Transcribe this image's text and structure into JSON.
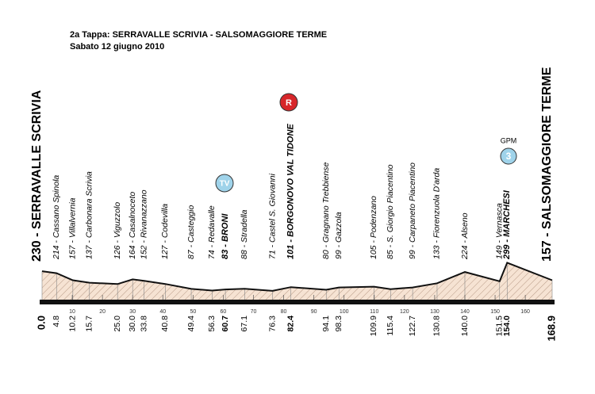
{
  "chart_data": {
    "type": "profile",
    "title": "2a Tappa: SERRAVALLE SCRIVIA - SALSOMAGGIORE TERME",
    "subtitle": "Sabato 12 giugno 2010",
    "categories": [
      "230 - SERRAVALLE SCRIVIA",
      "214 - Cassano Spinola",
      "157 - Villalvernia",
      "137 - Carbonara Scrivia",
      "126 - Viguzzolo",
      "164 - Casalnoceto",
      "152 - Rivanazzano",
      "127 - Codevilla",
      "87 - Casteggio",
      "74 - Redavalle",
      "83 - BRONI",
      "88 - Stradella",
      "71 - Castel S. Giovanni",
      "101 - BORGONOVO VAL TIDONE",
      "80 - Gragnano Trebbiense",
      "99 - Gazzola",
      "105 - Podenzano",
      "85 - S. Giorgio Piacentino",
      "99 - Carpaneto Piacentino",
      "133 - Fiorenzuola D'arda",
      "224 - Alseno",
      "149 - Vernasca",
      "299 - MARCHESI",
      "157 - SALSOMAGGIORE TERME"
    ],
    "x": [
      0,
      4.8,
      10.2,
      15.7,
      25,
      30,
      33.8,
      40.8,
      49.4,
      56.3,
      60.7,
      67.1,
      76.3,
      82.4,
      94.1,
      98.3,
      109.9,
      115.4,
      122.7,
      130.8,
      140,
      151.5,
      154,
      168.9
    ],
    "x_labels": [
      "0.0",
      "4.8",
      "10.2",
      "15.7",
      "25.0",
      "30.0",
      "33.8",
      "40.8",
      "49.4",
      "56.3",
      "60.7",
      "67.1",
      "76.3",
      "82.4",
      "94.1",
      "98.3",
      "109.9",
      "115.4",
      "122.7",
      "130.8",
      "140.0",
      "151.5",
      "154.0",
      "168.9"
    ],
    "values": [
      230,
      214,
      157,
      137,
      126,
      164,
      152,
      127,
      87,
      74,
      83,
      88,
      71,
      101,
      80,
      99,
      105,
      85,
      99,
      133,
      224,
      149,
      299,
      157
    ],
    "xlim": [
      0,
      168.9
    ],
    "ylim": [
      0,
      1000
    ],
    "xticks": [
      10,
      20,
      30,
      40,
      50,
      60,
      70,
      80,
      90,
      100,
      110,
      120,
      130,
      140,
      150,
      160
    ],
    "icons": {
      "tv": "TV",
      "sprint": "R",
      "gpm": "GPM",
      "gpm_category": "3"
    }
  }
}
